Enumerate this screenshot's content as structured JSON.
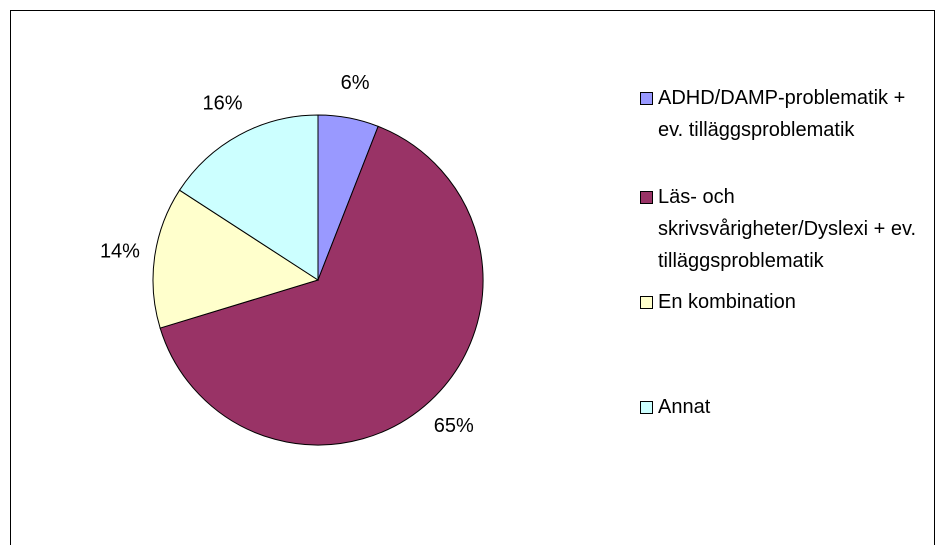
{
  "chart_data": {
    "type": "pie",
    "categories": [
      "ADHD/DAMP-problematik + ev. tilläggsproblematik",
      "Läs- och skrivsvårigheter/Dyslexi + ev. tilläggsproblematik",
      "En kombination",
      "Annat"
    ],
    "values": [
      6,
      65,
      14,
      16
    ],
    "value_labels": [
      "6%",
      "65%",
      "14%",
      "16%"
    ],
    "colors": [
      "#9999ff",
      "#993366",
      "#ffffcc",
      "#ccffff"
    ],
    "legend": "right"
  }
}
